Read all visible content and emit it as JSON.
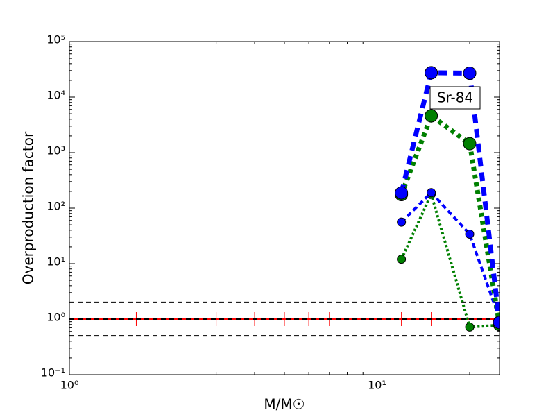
{
  "chart_data": {
    "type": "line",
    "xlabel": "M/M☉",
    "ylabel": "Overproduction factor",
    "annotation": "Sr-84",
    "xscale": "log",
    "yscale": "log",
    "xlim": [
      1,
      25
    ],
    "ylim": [
      0.1,
      100000
    ],
    "xticks": [
      {
        "value": 1,
        "label": "10⁰"
      },
      {
        "value": 10,
        "label": "10¹"
      }
    ],
    "yticks": [
      {
        "value": 0.1,
        "label": "10⁻¹"
      },
      {
        "value": 1,
        "label": "10⁰"
      },
      {
        "value": 10,
        "label": "10¹"
      },
      {
        "value": 100,
        "label": "10²"
      },
      {
        "value": 1000,
        "label": "10³"
      },
      {
        "value": 10000,
        "label": "10⁴"
      },
      {
        "value": 100000,
        "label": "10⁵"
      }
    ],
    "x": [
      12,
      15,
      20,
      25
    ],
    "series": [
      {
        "color": "green",
        "linestyle": "dotted",
        "linewidth": 4,
        "marker_size": 6,
        "values": [
          12,
          178,
          0.72,
          0.78
        ]
      },
      {
        "color": "blue",
        "linestyle": "dashed",
        "linewidth": 4,
        "marker_size": 6,
        "values": [
          56,
          190,
          34,
          1.0
        ]
      },
      {
        "color": "green",
        "linestyle": "dotted",
        "linewidth": 7,
        "marker_size": 9,
        "values": [
          175,
          4600,
          1450,
          0.8
        ]
      },
      {
        "color": "blue",
        "linestyle": "dashed",
        "linewidth": 7,
        "marker_size": 9,
        "values": [
          188,
          27500,
          27000,
          0.87
        ]
      }
    ],
    "hlines": [
      {
        "y": 2,
        "color": "black"
      },
      {
        "y": 1,
        "color": "black"
      },
      {
        "y": 0.5,
        "color": "black"
      }
    ],
    "reference": {
      "y": 1,
      "color": "red",
      "marker_x": [
        1.65,
        2,
        3,
        4,
        5,
        6,
        7,
        12,
        15
      ]
    }
  }
}
